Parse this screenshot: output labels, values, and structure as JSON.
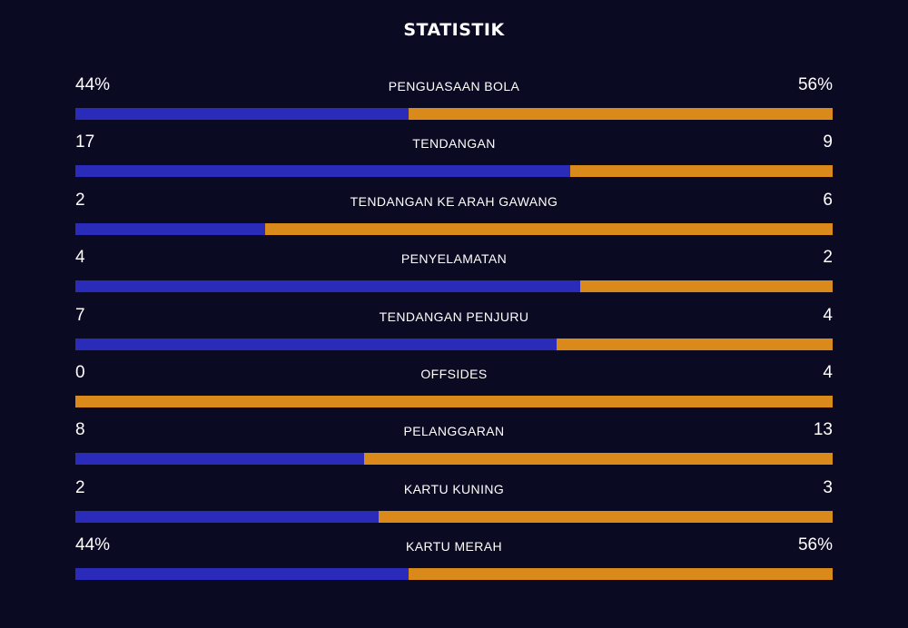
{
  "title": "STATISTIK",
  "colors": {
    "background": "#0a0a23",
    "home": "#2a2bb8",
    "away": "#d98a1a"
  },
  "stats": [
    {
      "label": "PENGUASAAN BOLA",
      "left": "44%",
      "right": "56%",
      "left_share": 0.44
    },
    {
      "label": "TENDANGAN",
      "left": "17",
      "right": "9",
      "left_share": 0.654
    },
    {
      "label": "TENDANGAN KE ARAH GAWANG",
      "left": "2",
      "right": "6",
      "left_share": 0.25
    },
    {
      "label": "PENYELAMATAN",
      "left": "4",
      "right": "2",
      "left_share": 0.667
    },
    {
      "label": "TENDANGAN PENJURU",
      "left": "7",
      "right": "4",
      "left_share": 0.636
    },
    {
      "label": "OFFSIDES",
      "left": "0",
      "right": "4",
      "left_share": 0.0
    },
    {
      "label": "PELANGGARAN",
      "left": "8",
      "right": "13",
      "left_share": 0.381
    },
    {
      "label": "KARTU KUNING",
      "left": "2",
      "right": "3",
      "left_share": 0.4
    },
    {
      "label": "KARTU MERAH",
      "left": "44%",
      "right": "56%",
      "left_share": 0.44
    }
  ]
}
